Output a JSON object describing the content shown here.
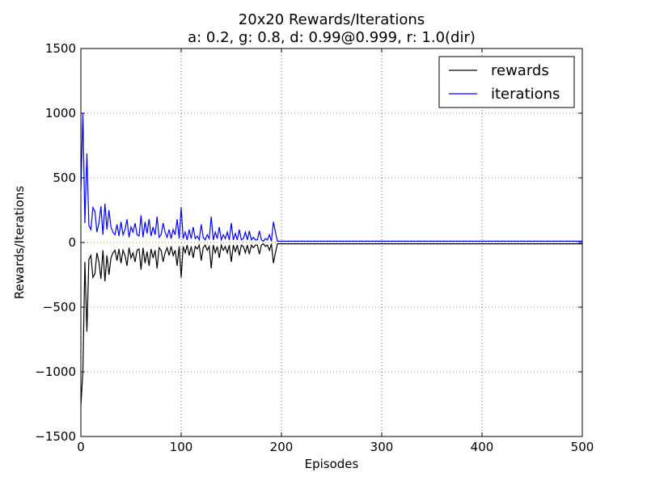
{
  "chart_data": {
    "type": "line",
    "title": "20x20 Rewards/Iterations",
    "subtitle": "a: 0.2, g: 0.8, d: 0.99@0.999, r: 1.0(dir)",
    "x_label": "Episodes",
    "y_label": "Rewards/Iterations",
    "x": [
      0,
      2,
      4,
      6,
      8,
      10,
      12,
      14,
      16,
      18,
      20,
      22,
      24,
      26,
      28,
      30,
      32,
      34,
      36,
      38,
      40,
      42,
      44,
      46,
      48,
      50,
      52,
      54,
      56,
      58,
      60,
      62,
      64,
      66,
      68,
      70,
      72,
      74,
      76,
      78,
      80,
      82,
      84,
      86,
      88,
      90,
      92,
      94,
      96,
      98,
      100,
      102,
      104,
      106,
      108,
      110,
      112,
      114,
      116,
      118,
      120,
      122,
      124,
      126,
      128,
      130,
      132,
      134,
      136,
      138,
      140,
      142,
      144,
      146,
      148,
      150,
      152,
      154,
      156,
      158,
      160,
      162,
      164,
      166,
      168,
      170,
      172,
      174,
      176,
      178,
      180,
      182,
      184,
      186,
      188,
      190,
      192,
      194,
      196,
      198,
      200,
      250,
      300,
      350,
      400,
      450,
      500
    ],
    "series": [
      {
        "name": "rewards",
        "color": "#000000",
        "values": [
          -1260,
          -1000,
          -150,
          -690,
          -130,
          -100,
          -270,
          -240,
          -80,
          -150,
          -280,
          -60,
          -300,
          -100,
          -250,
          -120,
          -80,
          -60,
          -140,
          -50,
          -160,
          -60,
          -100,
          -180,
          -40,
          -120,
          -80,
          -150,
          -60,
          -50,
          -210,
          -40,
          -160,
          -70,
          -180,
          -50,
          -120,
          -60,
          -200,
          -40,
          -60,
          -150,
          -80,
          -40,
          -100,
          -30,
          -100,
          -60,
          -180,
          -30,
          -270,
          -30,
          -80,
          -20,
          -100,
          -30,
          -120,
          -30,
          -50,
          -20,
          -140,
          -40,
          -20,
          -60,
          -30,
          -200,
          -20,
          -80,
          -30,
          -120,
          -20,
          -60,
          -30,
          -80,
          -20,
          -150,
          -20,
          -70,
          -20,
          -100,
          -20,
          -30,
          -80,
          -20,
          -90,
          -20,
          -40,
          -20,
          -20,
          -90,
          -20,
          -10,
          -30,
          -20,
          -60,
          -10,
          -160,
          -80,
          -10,
          -10,
          -10,
          -10,
          -10,
          -10,
          -10,
          -10,
          -10
        ]
      },
      {
        "name": "iterations",
        "color": "#0000ff",
        "values": [
          400,
          1000,
          150,
          690,
          130,
          100,
          270,
          240,
          80,
          150,
          280,
          60,
          300,
          100,
          250,
          120,
          80,
          60,
          140,
          50,
          160,
          60,
          100,
          180,
          40,
          120,
          80,
          150,
          60,
          50,
          210,
          40,
          160,
          70,
          180,
          50,
          120,
          60,
          200,
          40,
          60,
          150,
          80,
          40,
          100,
          30,
          100,
          60,
          180,
          30,
          270,
          30,
          80,
          20,
          100,
          30,
          120,
          30,
          50,
          20,
          140,
          40,
          20,
          60,
          30,
          200,
          20,
          80,
          30,
          120,
          20,
          60,
          30,
          80,
          20,
          150,
          20,
          70,
          20,
          100,
          20,
          30,
          80,
          20,
          90,
          20,
          40,
          20,
          20,
          90,
          20,
          10,
          30,
          20,
          60,
          10,
          160,
          80,
          10,
          10,
          10,
          10,
          10,
          10,
          10,
          10,
          10
        ]
      }
    ],
    "xlim": [
      0,
      500
    ],
    "xticks": [
      0,
      100,
      200,
      300,
      400,
      500
    ],
    "ylim": [
      -1500,
      1500
    ],
    "yticks": [
      {
        "value": -1500,
        "label": "−1500"
      },
      {
        "value": -1000,
        "label": "−1000"
      },
      {
        "value": -500,
        "label": "−500"
      },
      0,
      500,
      1000,
      1500
    ],
    "grid": true,
    "legend": "upper right"
  }
}
